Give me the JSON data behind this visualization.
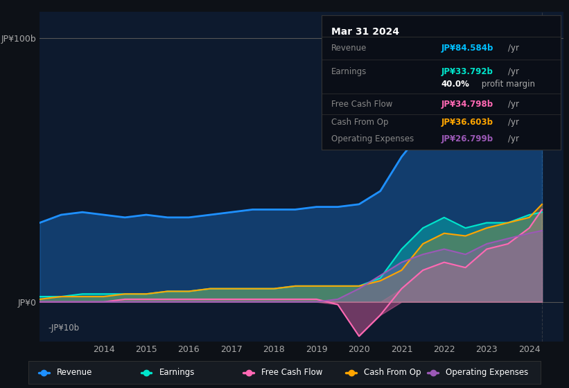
{
  "bg_color": "#0d1117",
  "chart_bg": "#0d1a2e",
  "title": "Mar 31 2024",
  "ylabel": "JP¥100b",
  "ylim": [
    -15,
    110
  ],
  "xlim": [
    2012.5,
    2024.8
  ],
  "yticks": [
    0,
    100
  ],
  "ytick_labels": [
    "JP¥0",
    "JP¥100b"
  ],
  "ytick_neg": [
    -10
  ],
  "ytick_neg_labels": [
    "-JP¥10b"
  ],
  "xticks": [
    2014,
    2015,
    2016,
    2017,
    2018,
    2019,
    2020,
    2021,
    2022,
    2023,
    2024
  ],
  "revenue_color": "#1e90ff",
  "earnings_color": "#00e5cc",
  "fcf_color": "#ff69b4",
  "cashfromop_color": "#ffa500",
  "opex_color": "#9b59b6",
  "legend_items": [
    "Revenue",
    "Earnings",
    "Free Cash Flow",
    "Cash From Op",
    "Operating Expenses"
  ],
  "legend_colors": [
    "#1e90ff",
    "#00e5cc",
    "#ff69b4",
    "#ffa500",
    "#9b59b6"
  ],
  "tooltip": {
    "date": "Mar 31 2024",
    "revenue": "JP¥84.584b",
    "earnings": "JP¥33.792b",
    "profit_margin": "40.0%",
    "fcf": "JP¥34.798b",
    "cashfromop": "JP¥36.603b",
    "opex": "JP¥26.799b"
  },
  "revenue_color_tt": "#00bfff",
  "earnings_color_tt": "#00e5cc",
  "fcf_color_tt": "#ff69b4",
  "cashfromop_color_tt": "#ffa500",
  "opex_color_tt": "#9b59b6",
  "years": [
    2012.5,
    2013.0,
    2013.5,
    2014.0,
    2014.5,
    2015.0,
    2015.5,
    2016.0,
    2016.5,
    2017.0,
    2017.5,
    2018.0,
    2018.5,
    2019.0,
    2019.5,
    2020.0,
    2020.5,
    2021.0,
    2021.5,
    2022.0,
    2022.5,
    2023.0,
    2023.5,
    2024.0,
    2024.3
  ],
  "revenue": [
    30,
    33,
    34,
    33,
    32,
    33,
    32,
    32,
    33,
    34,
    35,
    35,
    35,
    36,
    36,
    37,
    42,
    55,
    65,
    70,
    67,
    72,
    75,
    82,
    90
  ],
  "earnings": [
    2,
    2,
    3,
    3,
    3,
    3,
    4,
    4,
    5,
    5,
    5,
    5,
    6,
    6,
    6,
    6,
    9,
    20,
    28,
    32,
    28,
    30,
    30,
    33,
    34
  ],
  "fcf": [
    0,
    0,
    0,
    0,
    1,
    1,
    1,
    1,
    1,
    1,
    1,
    1,
    1,
    1,
    -1,
    -13,
    -5,
    5,
    12,
    15,
    13,
    20,
    22,
    28,
    35
  ],
  "cashfromop": [
    1,
    2,
    2,
    2,
    3,
    3,
    4,
    4,
    5,
    5,
    5,
    5,
    6,
    6,
    6,
    6,
    8,
    12,
    22,
    26,
    25,
    28,
    30,
    32,
    37
  ],
  "opex": [
    0,
    0,
    0,
    0,
    0,
    0,
    0,
    0,
    0,
    0,
    0,
    0,
    0,
    0,
    1,
    5,
    10,
    15,
    18,
    20,
    18,
    22,
    24,
    26,
    27
  ]
}
